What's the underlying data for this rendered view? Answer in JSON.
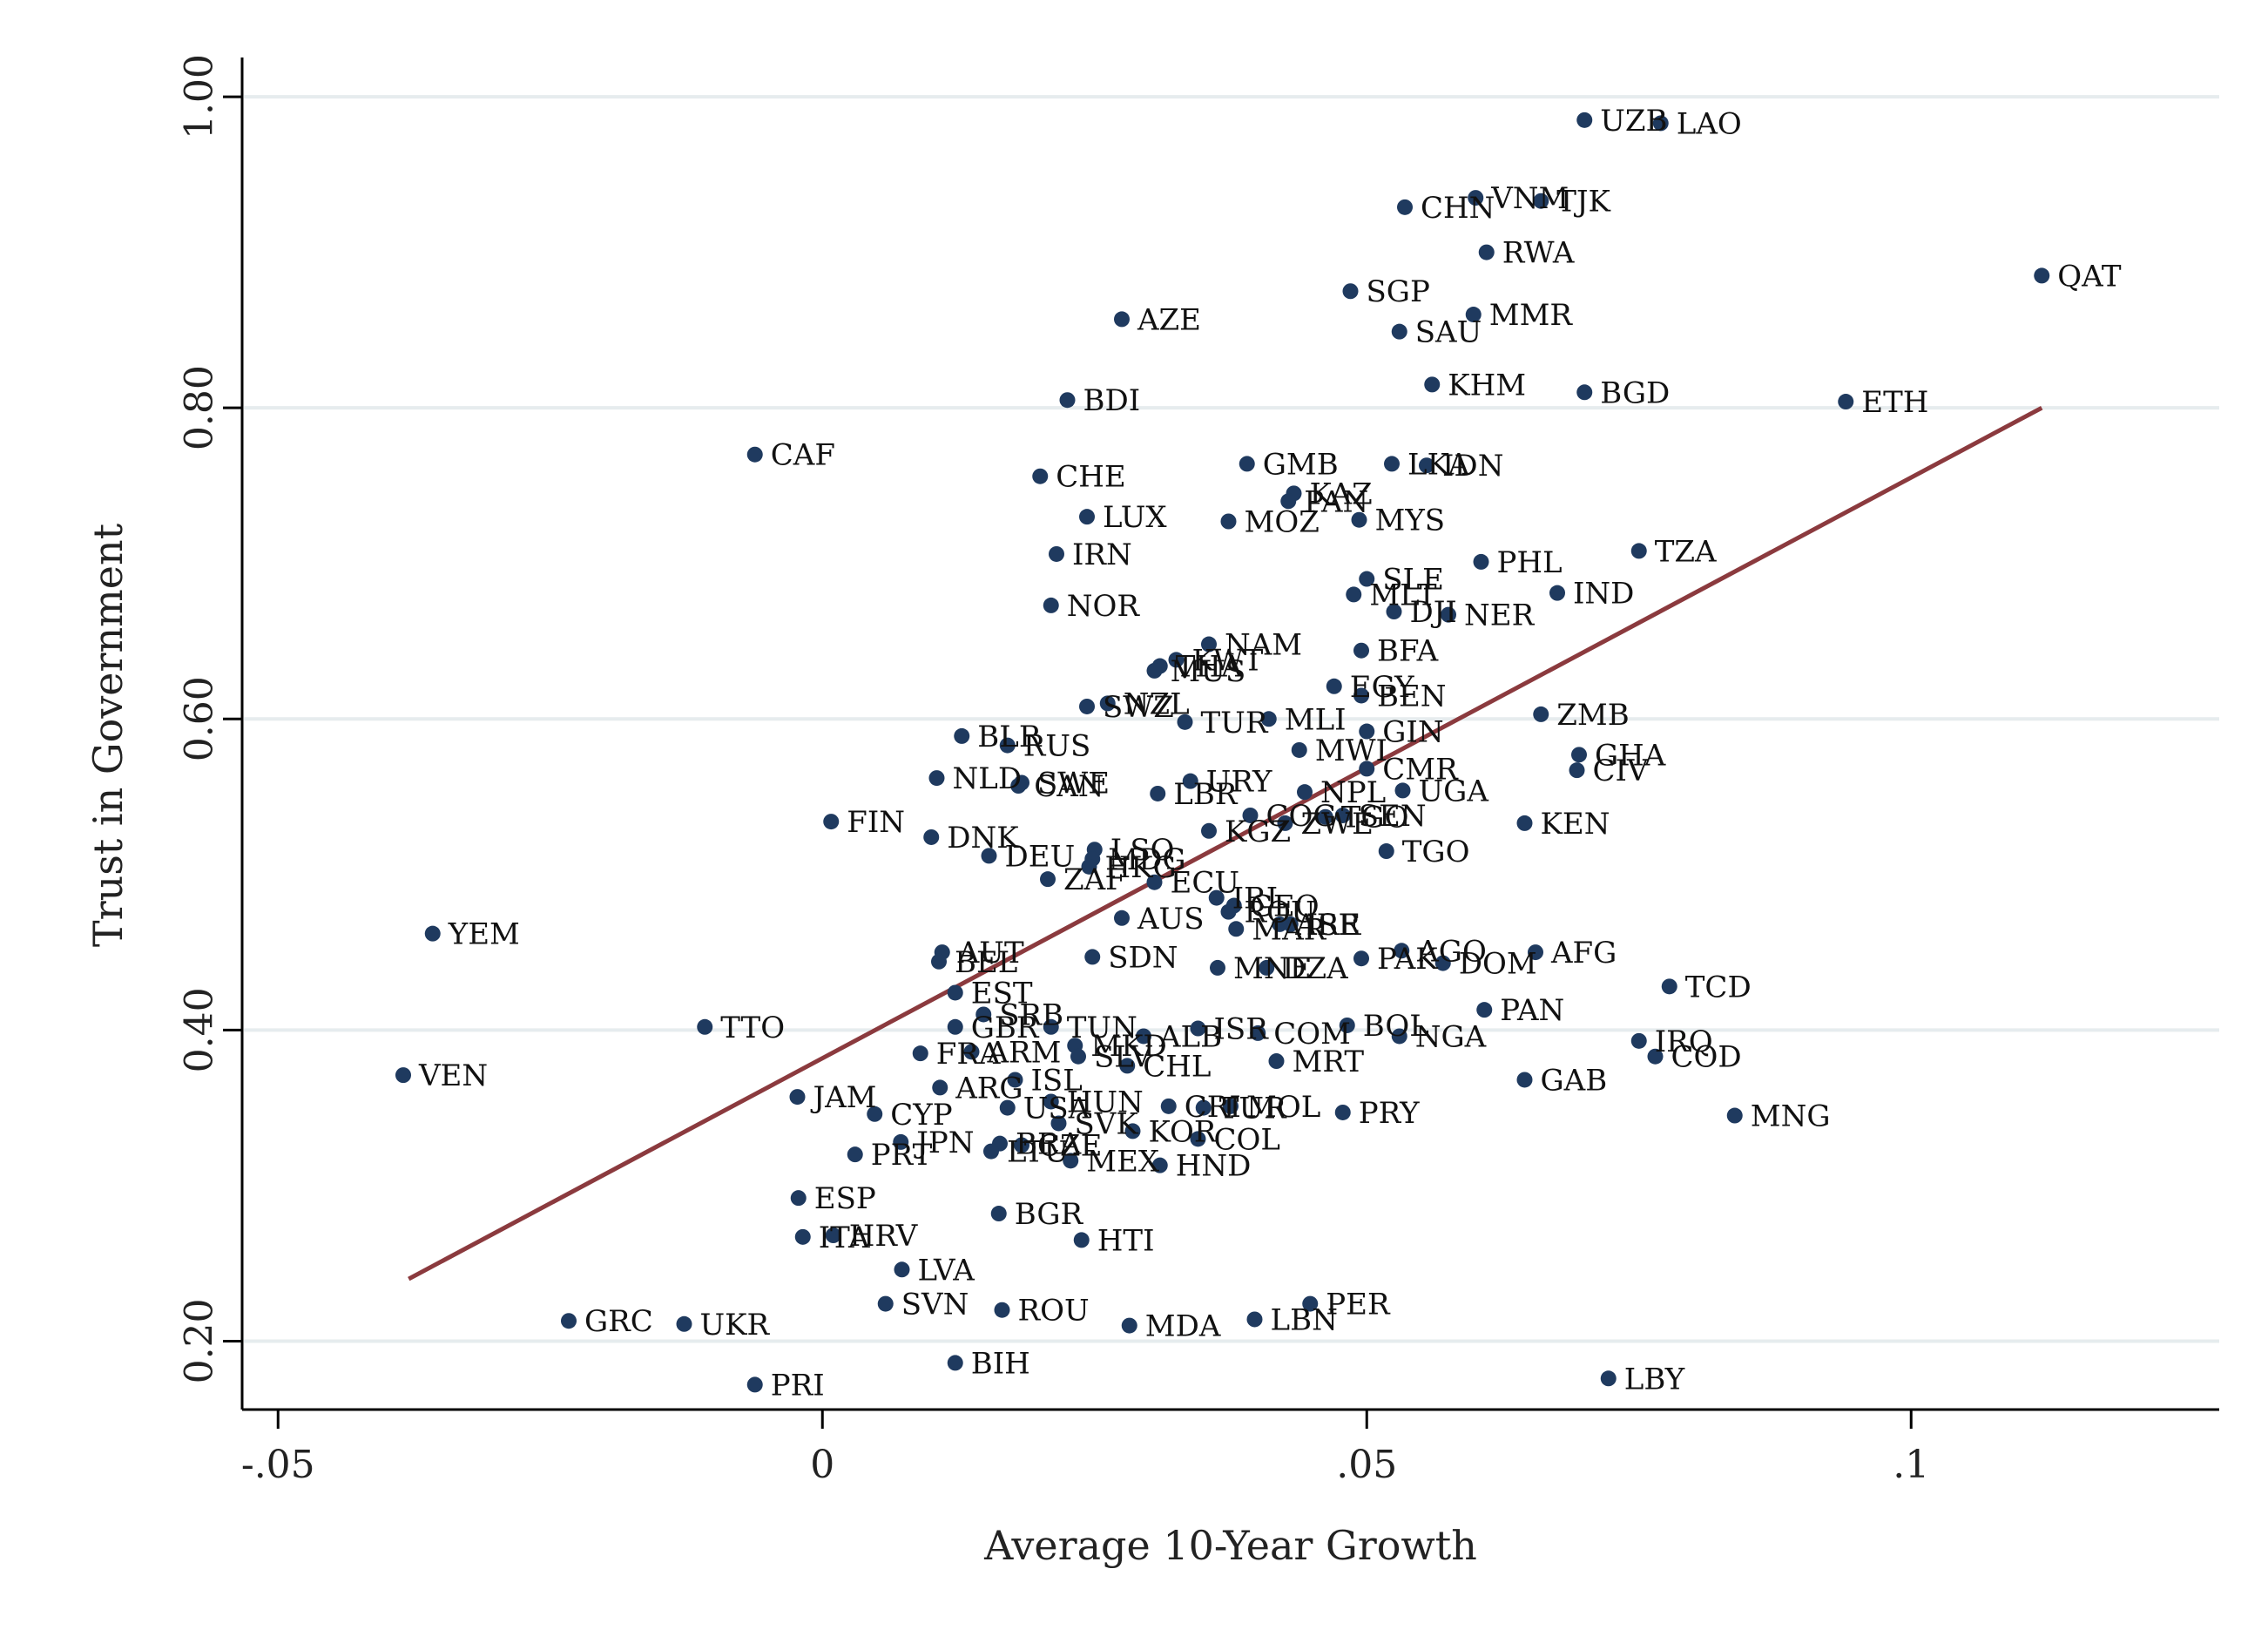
{
  "chart_data": {
    "type": "scatter",
    "title": "",
    "xlabel": "Average 10-Year Growth",
    "ylabel": "Trust in Government",
    "xlim": [
      -0.0533,
      0.1283
    ],
    "ylim": [
      0.156,
      1.023
    ],
    "x_ticks": [
      {
        "value": -0.05,
        "label": "-.05"
      },
      {
        "value": 0,
        "label": "0"
      },
      {
        "value": 0.05,
        "label": ".05"
      },
      {
        "value": 0.1,
        "label": ".1"
      }
    ],
    "y_ticks": [
      {
        "value": 0.2,
        "label": "0.20"
      },
      {
        "value": 0.4,
        "label": "0.40"
      },
      {
        "value": 0.6,
        "label": "0.60"
      },
      {
        "value": 0.8,
        "label": "0.80"
      },
      {
        "value": 1.0,
        "label": "1.00"
      }
    ],
    "grid": "horizontal",
    "fit_line": {
      "x": [
        -0.038,
        0.112
      ],
      "y": [
        0.24,
        0.8
      ]
    },
    "points": [
      {
        "label": "UZB",
        "x": 0.07,
        "y": 0.985
      },
      {
        "label": "LAO",
        "x": 0.077,
        "y": 0.983
      },
      {
        "label": "VNM",
        "x": 0.06,
        "y": 0.935
      },
      {
        "label": "TJK",
        "x": 0.066,
        "y": 0.933
      },
      {
        "label": "CHN",
        "x": 0.0535,
        "y": 0.929
      },
      {
        "label": "RWA",
        "x": 0.061,
        "y": 0.9
      },
      {
        "label": "QAT",
        "x": 0.112,
        "y": 0.885
      },
      {
        "label": "SGP",
        "x": 0.0485,
        "y": 0.875
      },
      {
        "label": "MMR",
        "x": 0.0598,
        "y": 0.86
      },
      {
        "label": "AZE",
        "x": 0.0275,
        "y": 0.857
      },
      {
        "label": "SAU",
        "x": 0.053,
        "y": 0.849
      },
      {
        "label": "KHM",
        "x": 0.056,
        "y": 0.815
      },
      {
        "label": "BGD",
        "x": 0.07,
        "y": 0.81
      },
      {
        "label": "BDI",
        "x": 0.0225,
        "y": 0.805
      },
      {
        "label": "ETH",
        "x": 0.094,
        "y": 0.804
      },
      {
        "label": "CAF",
        "x": -0.0062,
        "y": 0.77
      },
      {
        "label": "GMB",
        "x": 0.039,
        "y": 0.764
      },
      {
        "label": "LKA",
        "x": 0.0523,
        "y": 0.764
      },
      {
        "label": "IDN",
        "x": 0.0555,
        "y": 0.763
      },
      {
        "label": "CHE",
        "x": 0.02,
        "y": 0.756
      },
      {
        "label": "KAZ",
        "x": 0.0433,
        "y": 0.745
      },
      {
        "label": "PAN",
        "x": 0.0428,
        "y": 0.74
      },
      {
        "label": "LUX",
        "x": 0.0243,
        "y": 0.73
      },
      {
        "label": "MOZ",
        "x": 0.0373,
        "y": 0.727
      },
      {
        "label": "MYS",
        "x": 0.0493,
        "y": 0.728
      },
      {
        "label": "IRN",
        "x": 0.0215,
        "y": 0.706
      },
      {
        "label": "TZA",
        "x": 0.075,
        "y": 0.708
      },
      {
        "label": "PHL",
        "x": 0.0605,
        "y": 0.701
      },
      {
        "label": "SLE",
        "x": 0.05,
        "y": 0.69
      },
      {
        "label": "MLT",
        "x": 0.0488,
        "y": 0.68
      },
      {
        "label": "IND",
        "x": 0.0675,
        "y": 0.681
      },
      {
        "label": "NOR",
        "x": 0.021,
        "y": 0.673
      },
      {
        "label": "DJI",
        "x": 0.0525,
        "y": 0.669
      },
      {
        "label": "NER",
        "x": 0.0575,
        "y": 0.667
      },
      {
        "label": "NAM",
        "x": 0.0355,
        "y": 0.648
      },
      {
        "label": "BFA",
        "x": 0.0495,
        "y": 0.644
      },
      {
        "label": "KWT",
        "x": 0.0325,
        "y": 0.638
      },
      {
        "label": "THA",
        "x": 0.031,
        "y": 0.634
      },
      {
        "label": "MUS",
        "x": 0.0305,
        "y": 0.631
      },
      {
        "label": "EGY",
        "x": 0.047,
        "y": 0.621
      },
      {
        "label": "BEN",
        "x": 0.0495,
        "y": 0.615
      },
      {
        "label": "SWZ",
        "x": 0.0243,
        "y": 0.608
      },
      {
        "label": "NZL",
        "x": 0.0262,
        "y": 0.61
      },
      {
        "label": "ZMB",
        "x": 0.066,
        "y": 0.603
      },
      {
        "label": "TUR",
        "x": 0.0333,
        "y": 0.598
      },
      {
        "label": "MLI",
        "x": 0.041,
        "y": 0.6
      },
      {
        "label": "GIN",
        "x": 0.05,
        "y": 0.592
      },
      {
        "label": "BLR",
        "x": 0.0128,
        "y": 0.589
      },
      {
        "label": "RUS",
        "x": 0.017,
        "y": 0.583
      },
      {
        "label": "MWI",
        "x": 0.0438,
        "y": 0.58
      },
      {
        "label": "GHA",
        "x": 0.0695,
        "y": 0.577
      },
      {
        "label": "CMR",
        "x": 0.05,
        "y": 0.568
      },
      {
        "label": "CIV",
        "x": 0.0693,
        "y": 0.567
      },
      {
        "label": "NLD",
        "x": 0.0105,
        "y": 0.562
      },
      {
        "label": "SWE",
        "x": 0.0183,
        "y": 0.559
      },
      {
        "label": "CAN",
        "x": 0.018,
        "y": 0.557
      },
      {
        "label": "URY",
        "x": 0.0338,
        "y": 0.56
      },
      {
        "label": "UGA",
        "x": 0.0533,
        "y": 0.554
      },
      {
        "label": "NPL",
        "x": 0.0443,
        "y": 0.553
      },
      {
        "label": "LBR",
        "x": 0.0308,
        "y": 0.552
      },
      {
        "label": "COG",
        "x": 0.0393,
        "y": 0.538
      },
      {
        "label": "TGO",
        "x": 0.0462,
        "y": 0.537
      },
      {
        "label": "SEN",
        "x": 0.0478,
        "y": 0.538
      },
      {
        "label": "ZWE",
        "x": 0.0425,
        "y": 0.533
      },
      {
        "label": "FIN",
        "x": 0.0008,
        "y": 0.534
      },
      {
        "label": "KEN",
        "x": 0.0645,
        "y": 0.533
      },
      {
        "label": "KGZ",
        "x": 0.0355,
        "y": 0.528
      },
      {
        "label": "DNK",
        "x": 0.01,
        "y": 0.524
      },
      {
        "label": "TGO",
        "x": 0.0518,
        "y": 0.515
      },
      {
        "label": "LSO",
        "x": 0.025,
        "y": 0.516
      },
      {
        "label": "DEU",
        "x": 0.0153,
        "y": 0.512
      },
      {
        "label": "MDG",
        "x": 0.0248,
        "y": 0.51
      },
      {
        "label": "HKG",
        "x": 0.0245,
        "y": 0.505
      },
      {
        "label": "ZAF",
        "x": 0.0207,
        "y": 0.497
      },
      {
        "label": "ECU",
        "x": 0.0305,
        "y": 0.495
      },
      {
        "label": "IRL",
        "x": 0.0362,
        "y": 0.485
      },
      {
        "label": "GEO",
        "x": 0.0378,
        "y": 0.48
      },
      {
        "label": "ROU",
        "x": 0.0373,
        "y": 0.476
      },
      {
        "label": "AUS",
        "x": 0.0275,
        "y": 0.472
      },
      {
        "label": "ARE",
        "x": 0.042,
        "y": 0.468
      },
      {
        "label": "ISR",
        "x": 0.043,
        "y": 0.468
      },
      {
        "label": "MAR",
        "x": 0.038,
        "y": 0.465
      },
      {
        "label": "YEM",
        "x": -0.0358,
        "y": 0.462
      },
      {
        "label": "AUT",
        "x": 0.011,
        "y": 0.45
      },
      {
        "label": "AGO",
        "x": 0.0532,
        "y": 0.451
      },
      {
        "label": "AFG",
        "x": 0.0655,
        "y": 0.45
      },
      {
        "label": "SDN",
        "x": 0.0248,
        "y": 0.447
      },
      {
        "label": "PAK",
        "x": 0.0495,
        "y": 0.446
      },
      {
        "label": "BEL",
        "x": 0.0107,
        "y": 0.444
      },
      {
        "label": "DOM",
        "x": 0.057,
        "y": 0.443
      },
      {
        "label": "MNE",
        "x": 0.0363,
        "y": 0.44
      },
      {
        "label": "DZA",
        "x": 0.0408,
        "y": 0.44
      },
      {
        "label": "TCD",
        "x": 0.0778,
        "y": 0.428
      },
      {
        "label": "EST",
        "x": 0.0122,
        "y": 0.424
      },
      {
        "label": "PAN",
        "x": 0.0608,
        "y": 0.413
      },
      {
        "label": "SRB",
        "x": 0.0148,
        "y": 0.41
      },
      {
        "label": "TUN",
        "x": 0.021,
        "y": 0.402
      },
      {
        "label": "TTO",
        "x": -0.0108,
        "y": 0.402
      },
      {
        "label": "GBR",
        "x": 0.0122,
        "y": 0.402
      },
      {
        "label": "ISR",
        "x": 0.0345,
        "y": 0.401
      },
      {
        "label": "BOL",
        "x": 0.0482,
        "y": 0.403
      },
      {
        "label": "ALB",
        "x": 0.0295,
        "y": 0.396
      },
      {
        "label": "COM",
        "x": 0.04,
        "y": 0.398
      },
      {
        "label": "NGA",
        "x": 0.053,
        "y": 0.396
      },
      {
        "label": "MKD",
        "x": 0.0232,
        "y": 0.39
      },
      {
        "label": "IRQ",
        "x": 0.075,
        "y": 0.393
      },
      {
        "label": "FRA",
        "x": 0.009,
        "y": 0.385
      },
      {
        "label": "ARM",
        "x": 0.0137,
        "y": 0.386
      },
      {
        "label": "SLV",
        "x": 0.0235,
        "y": 0.383
      },
      {
        "label": "COD",
        "x": 0.0765,
        "y": 0.383
      },
      {
        "label": "MRT",
        "x": 0.0417,
        "y": 0.38
      },
      {
        "label": "CHL",
        "x": 0.028,
        "y": 0.377
      },
      {
        "label": "VEN",
        "x": -0.0385,
        "y": 0.371
      },
      {
        "label": "GAB",
        "x": 0.0645,
        "y": 0.368
      },
      {
        "label": "ISL",
        "x": 0.0177,
        "y": 0.368
      },
      {
        "label": "ARG",
        "x": 0.0108,
        "y": 0.363
      },
      {
        "label": "JAM",
        "x": -0.0023,
        "y": 0.357
      },
      {
        "label": "HUN",
        "x": 0.021,
        "y": 0.354
      },
      {
        "label": "USA",
        "x": 0.017,
        "y": 0.35
      },
      {
        "label": "CRI",
        "x": 0.0318,
        "y": 0.351
      },
      {
        "label": "TUR",
        "x": 0.035,
        "y": 0.35
      },
      {
        "label": "MOL",
        "x": 0.0375,
        "y": 0.351
      },
      {
        "label": "MNG",
        "x": 0.0838,
        "y": 0.345
      },
      {
        "label": "PRY",
        "x": 0.0478,
        "y": 0.347
      },
      {
        "label": "CYP",
        "x": 0.0048,
        "y": 0.346
      },
      {
        "label": "SVK",
        "x": 0.0217,
        "y": 0.34
      },
      {
        "label": "KOR",
        "x": 0.0285,
        "y": 0.335
      },
      {
        "label": "COL",
        "x": 0.0345,
        "y": 0.33
      },
      {
        "label": "JPN",
        "x": 0.0072,
        "y": 0.328
      },
      {
        "label": "BRA",
        "x": 0.0163,
        "y": 0.327
      },
      {
        "label": "CZE",
        "x": 0.0183,
        "y": 0.326
      },
      {
        "label": "PRT",
        "x": 0.003,
        "y": 0.32
      },
      {
        "label": "LTU",
        "x": 0.0155,
        "y": 0.322
      },
      {
        "label": "MEX",
        "x": 0.0228,
        "y": 0.316
      },
      {
        "label": "HND",
        "x": 0.031,
        "y": 0.313
      },
      {
        "label": "ESP",
        "x": -0.0022,
        "y": 0.292
      },
      {
        "label": "BGR",
        "x": 0.0162,
        "y": 0.282
      },
      {
        "label": "HRV",
        "x": 0.001,
        "y": 0.268
      },
      {
        "label": "ITA",
        "x": -0.0018,
        "y": 0.267
      },
      {
        "label": "HTI",
        "x": 0.0238,
        "y": 0.265
      },
      {
        "label": "LVA",
        "x": 0.0073,
        "y": 0.246
      },
      {
        "label": "PER",
        "x": 0.0448,
        "y": 0.224
      },
      {
        "label": "SVN",
        "x": 0.0058,
        "y": 0.224
      },
      {
        "label": "ROU",
        "x": 0.0165,
        "y": 0.22
      },
      {
        "label": "LBN",
        "x": 0.0397,
        "y": 0.214
      },
      {
        "label": "GRC",
        "x": -0.0233,
        "y": 0.213
      },
      {
        "label": "UKR",
        "x": -0.0127,
        "y": 0.211
      },
      {
        "label": "MDA",
        "x": 0.0282,
        "y": 0.21
      },
      {
        "label": "BIH",
        "x": 0.0122,
        "y": 0.186
      },
      {
        "label": "LBY",
        "x": 0.0722,
        "y": 0.176
      },
      {
        "label": "PRI",
        "x": -0.0062,
        "y": 0.172
      }
    ],
    "colors": {
      "point": "#1f3a5f",
      "fit_line": "#8b3a3e",
      "grid": "#e6ecee",
      "axis": "#000000"
    }
  }
}
